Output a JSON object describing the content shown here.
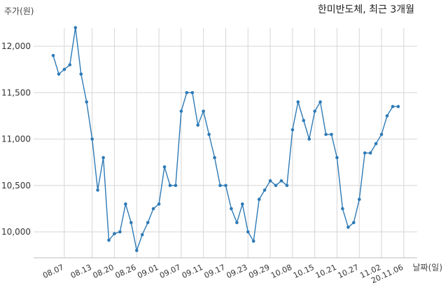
{
  "chart_data": {
    "type": "line",
    "title": "한미반도체, 최근 3개월",
    "ylabel": "주가(원)",
    "xlabel": "날짜(일)",
    "ylim": [
      9700,
      12400
    ],
    "yticks": [
      10000,
      10500,
      11000,
      11500,
      12000
    ],
    "ytick_labels": [
      "10,000",
      "10,500",
      "11,000",
      "11,500",
      "12,000"
    ],
    "xtick_labels": [
      "08.07",
      "08.13",
      "08.20",
      "08.26",
      "09.01",
      "09.07",
      "09.11",
      "09.17",
      "09.23",
      "09.29",
      "10.08",
      "10.15",
      "10.21",
      "10.27",
      "11.02",
      "20.11.06"
    ],
    "xtick_positions": [
      2,
      7,
      11,
      15,
      19,
      23,
      27,
      31,
      35,
      39,
      43,
      47,
      51,
      55,
      59,
      63
    ],
    "grid": true,
    "line_color": "#2e7ab6",
    "series": [
      {
        "values": [
          11900,
          11700,
          11750,
          11800,
          12200,
          11700,
          11400,
          11000,
          10450,
          10800,
          9910,
          9980,
          10000,
          10300,
          10100,
          9800,
          9970,
          10100,
          10250,
          10300,
          10700,
          10500,
          10500,
          11300,
          11500,
          11500,
          11150,
          11300,
          11050,
          10800,
          10500,
          10500,
          10250,
          10100,
          10300,
          10000,
          9900,
          10350,
          10450,
          10550,
          10500,
          10550,
          10500,
          11100,
          11400,
          11200,
          11000,
          11300,
          11400,
          11050,
          11050,
          10800,
          10250,
          10050,
          10100,
          10350,
          10850,
          10850,
          10950,
          11050,
          11250,
          11350,
          11350
        ]
      }
    ]
  }
}
